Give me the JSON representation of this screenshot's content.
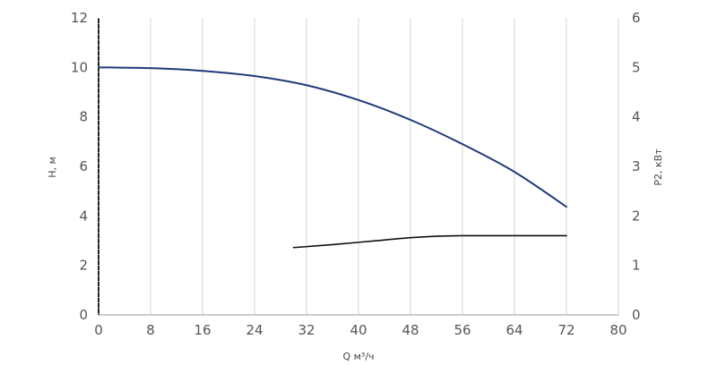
{
  "chart_data": {
    "type": "line",
    "xlabel": "Q м³/ч",
    "ylabel_left": "H, м",
    "ylabel_right": "P2, кВт",
    "xlim": [
      0,
      80
    ],
    "ylim_left": [
      0,
      12
    ],
    "ylim_right": [
      0,
      6
    ],
    "x_ticks": [
      0,
      8,
      16,
      24,
      32,
      40,
      48,
      56,
      64,
      72,
      80
    ],
    "y_left_ticks": [
      0,
      2,
      4,
      6,
      8,
      10,
      12
    ],
    "y_right_ticks": [
      0,
      1,
      2,
      3,
      4,
      5,
      6
    ],
    "grid": "vertical",
    "series": [
      {
        "axis": "left",
        "color": "#1f3a78",
        "points": [
          [
            0,
            10.0
          ],
          [
            8,
            9.97
          ],
          [
            16,
            9.86
          ],
          [
            24,
            9.65
          ],
          [
            32,
            9.28
          ],
          [
            40,
            8.68
          ],
          [
            48,
            7.88
          ],
          [
            56,
            6.9
          ],
          [
            64,
            5.78
          ],
          [
            72,
            4.37
          ]
        ]
      },
      {
        "axis": "right",
        "color": "#111111",
        "points": [
          [
            30,
            1.36
          ],
          [
            36,
            1.42
          ],
          [
            42,
            1.49
          ],
          [
            48,
            1.56
          ],
          [
            52,
            1.59
          ],
          [
            56,
            1.6
          ],
          [
            64,
            1.6
          ],
          [
            72,
            1.6
          ]
        ]
      }
    ]
  }
}
